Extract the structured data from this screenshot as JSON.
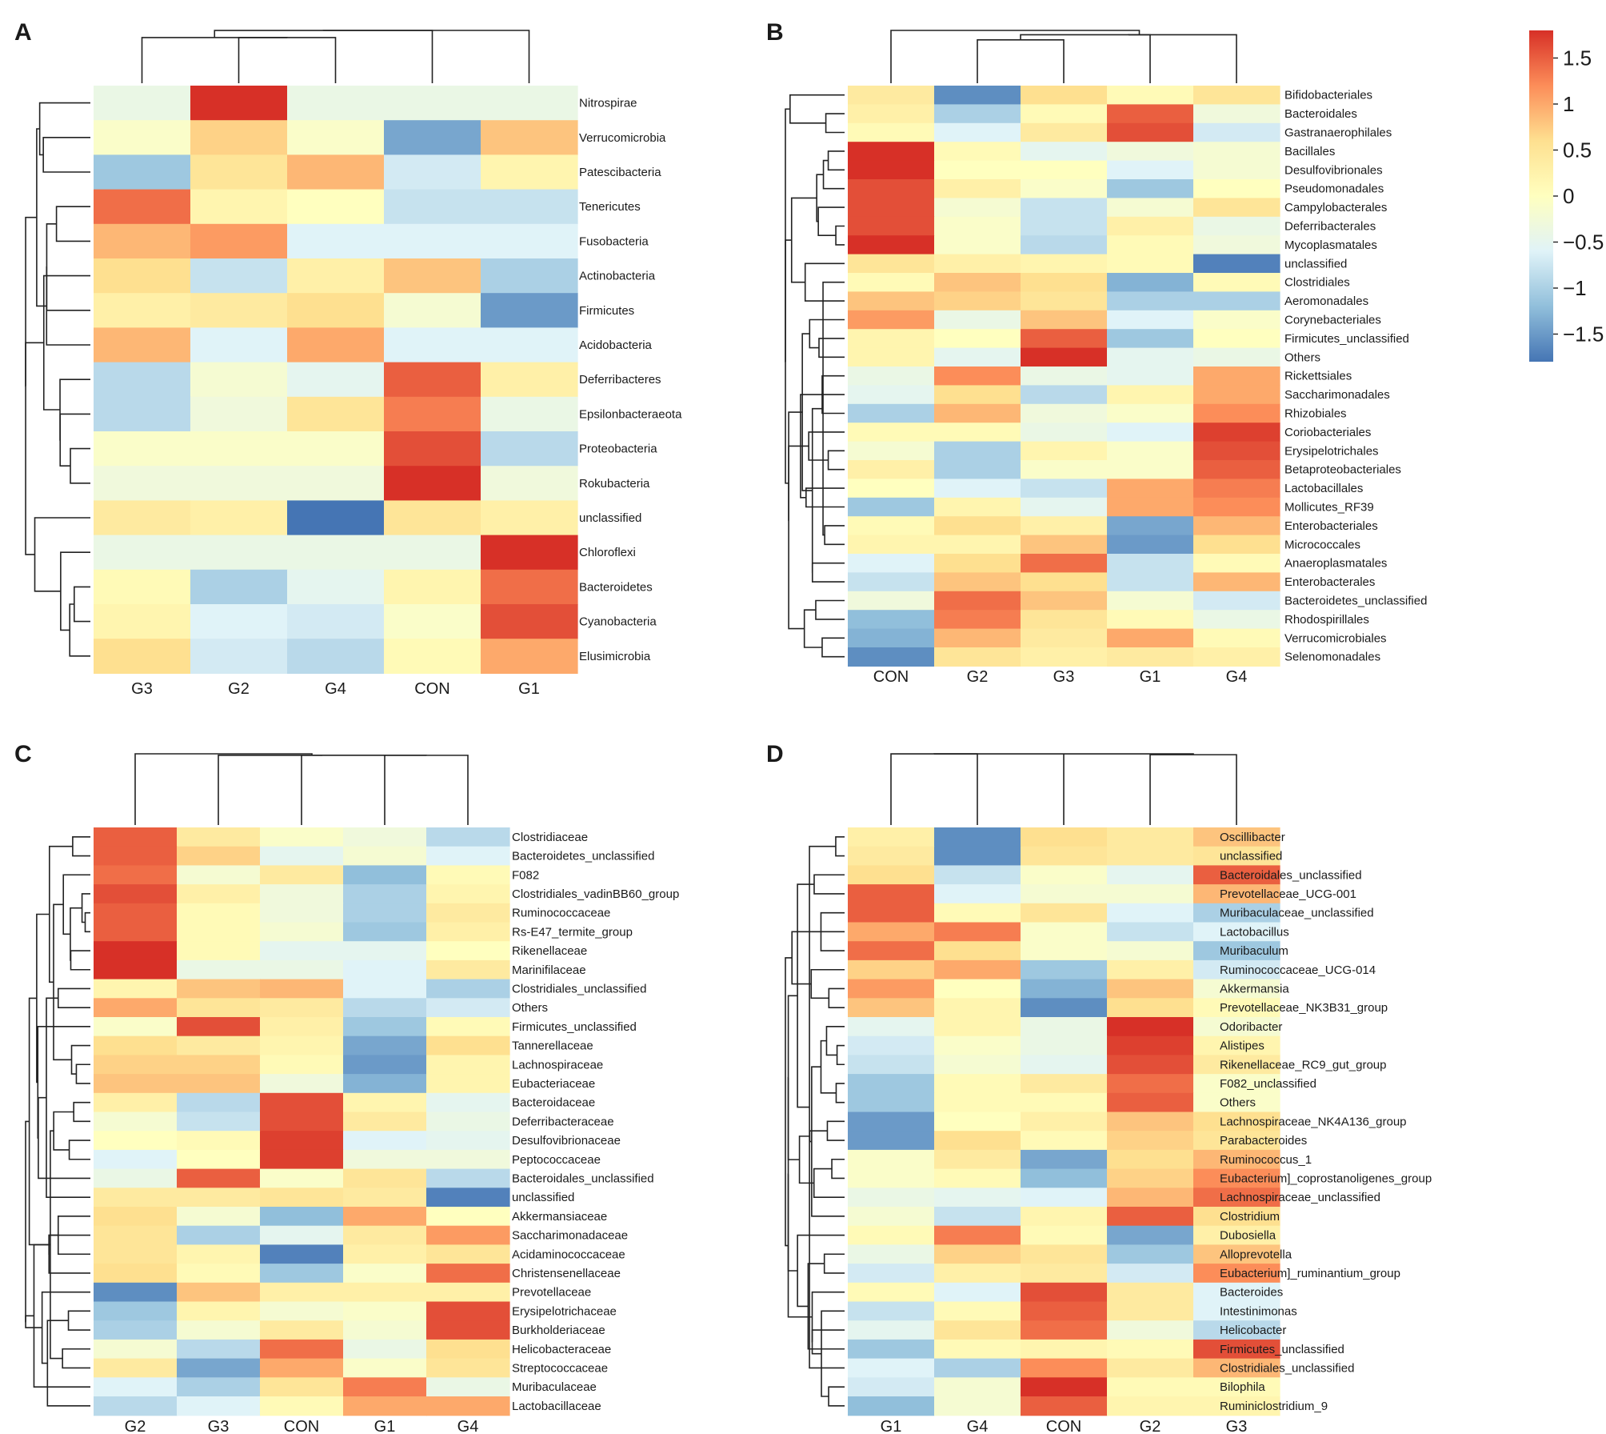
{
  "colors": {
    "scale": [
      "#4575b4",
      "#91bfdb",
      "#e0f3f8",
      "#ffffbf",
      "#fee090",
      "#fc8d59",
      "#d73027"
    ]
  },
  "chart_data": [
    {
      "type": "heatmap",
      "panel": "A",
      "columns": [
        "G3",
        "G2",
        "G4",
        "CON",
        "G1"
      ],
      "rows": [
        "Nitrospirae",
        "Verrucomicrobia",
        "Patescibacteria",
        "Tenericutes",
        "Fusobacteria",
        "Actinobacteria",
        "Firmicutes",
        "Acidobacteria",
        "Deferribacteres",
        "Epsilonbacteraeota",
        "Proteobacteria",
        "Rokubacteria",
        "unclassified",
        "Chloroflexi",
        "Bacteroidetes",
        "Cyanobacteria",
        "Elusimicrobia"
      ],
      "values": [
        [
          -0.4,
          1.8,
          -0.4,
          -0.4,
          -0.4
        ],
        [
          -0.1,
          0.7,
          -0.1,
          -1.4,
          0.8
        ],
        [
          -1.1,
          0.5,
          0.9,
          -0.7,
          0.2
        ],
        [
          1.4,
          0.2,
          0.0,
          -0.8,
          -0.8
        ],
        [
          0.9,
          1.1,
          -0.6,
          -0.6,
          -0.6
        ],
        [
          0.6,
          -0.8,
          0.3,
          0.8,
          -1.0
        ],
        [
          0.3,
          0.4,
          0.6,
          -0.2,
          -1.5
        ],
        [
          0.9,
          -0.6,
          1.0,
          -0.6,
          -0.6
        ],
        [
          -0.9,
          -0.2,
          -0.5,
          1.5,
          0.3
        ],
        [
          -0.9,
          -0.3,
          0.5,
          1.3,
          -0.4
        ],
        [
          -0.1,
          -0.1,
          -0.1,
          1.6,
          -0.9
        ],
        [
          -0.3,
          -0.3,
          -0.3,
          1.8,
          -0.3
        ],
        [
          0.4,
          0.3,
          -1.8,
          0.5,
          0.3
        ],
        [
          -0.4,
          -0.4,
          -0.4,
          -0.4,
          1.8
        ],
        [
          0.1,
          -1.0,
          -0.5,
          0.2,
          1.4
        ],
        [
          0.2,
          -0.6,
          -0.7,
          -0.1,
          1.6
        ],
        [
          0.6,
          -0.7,
          -0.9,
          0.1,
          1.0
        ]
      ],
      "scale_min": -1.8,
      "scale_max": 1.8
    },
    {
      "type": "heatmap",
      "panel": "B",
      "columns": [
        "CON",
        "G2",
        "G3",
        "G1",
        "G4"
      ],
      "rows": [
        "Bifidobacteriales",
        "Bacteroidales",
        "Gastranaerophilales",
        "Bacillales",
        "Desulfovibrionales",
        "Pseudomonadales",
        "Campylobacterales",
        "Deferribacterales",
        "Mycoplasmatales",
        "unclassified",
        "Clostridiales",
        "Aeromonadales",
        "Corynebacteriales",
        "Firmicutes_unclassified",
        "Others",
        "Rickettsiales",
        "Saccharimonadales",
        "Rhizobiales",
        "Coriobacteriales",
        "Erysipelotrichales",
        "Betaproteobacteriales",
        "Lactobacillales",
        "Mollicutes_RF39",
        "Enterobacteriales",
        "Micrococcales",
        "Anaeroplasmatales",
        "Enterobacterales",
        "Bacteroidetes_unclassified",
        "Rhodospirillales",
        "Verrucomicrobiales",
        "Selenomonadales"
      ],
      "values": [
        [
          0.4,
          -1.6,
          0.6,
          0.1,
          0.5
        ],
        [
          0.3,
          -1.0,
          0.1,
          1.5,
          -0.3
        ],
        [
          0.1,
          -0.6,
          0.4,
          1.6,
          -0.7
        ],
        [
          1.8,
          0.1,
          -0.5,
          -0.3,
          -0.2
        ],
        [
          1.8,
          0.0,
          0.0,
          -0.6,
          -0.2
        ],
        [
          1.6,
          0.3,
          -0.1,
          -1.1,
          0.0
        ],
        [
          1.6,
          -0.2,
          -0.8,
          -0.2,
          0.5
        ],
        [
          1.6,
          -0.1,
          -0.8,
          0.3,
          -0.4
        ],
        [
          1.8,
          -0.1,
          -0.9,
          0.1,
          -0.3
        ],
        [
          0.5,
          0.3,
          0.2,
          0.1,
          -1.7
        ],
        [
          0.1,
          0.8,
          0.6,
          -1.3,
          0.1
        ],
        [
          0.8,
          0.7,
          0.5,
          -1.0,
          -1.0
        ],
        [
          1.1,
          -0.4,
          0.8,
          -0.6,
          -0.1
        ],
        [
          0.2,
          0.0,
          1.5,
          -1.1,
          0.0
        ],
        [
          0.2,
          -0.5,
          1.8,
          -0.5,
          -0.4
        ],
        [
          -0.4,
          1.2,
          -0.4,
          -0.5,
          1.0
        ],
        [
          -0.5,
          0.6,
          -0.9,
          0.2,
          1.0
        ],
        [
          -1.0,
          0.9,
          -0.3,
          -0.1,
          1.2
        ],
        [
          0.1,
          0.1,
          -0.4,
          -0.6,
          1.7
        ],
        [
          -0.2,
          -1.0,
          0.2,
          -0.1,
          1.6
        ],
        [
          0.3,
          -1.0,
          -0.1,
          -0.1,
          1.5
        ],
        [
          0.0,
          -0.6,
          -0.8,
          1.0,
          1.3
        ],
        [
          -1.1,
          0.2,
          -0.5,
          1.0,
          1.2
        ],
        [
          0.1,
          0.6,
          0.3,
          -1.4,
          0.9
        ],
        [
          0.2,
          0.2,
          0.8,
          -1.5,
          0.6
        ],
        [
          -0.6,
          0.6,
          1.4,
          -0.8,
          0.1
        ],
        [
          -0.8,
          0.8,
          0.6,
          -0.8,
          0.9
        ],
        [
          -0.3,
          1.4,
          0.8,
          -0.2,
          -0.7
        ],
        [
          -1.2,
          1.3,
          0.5,
          0.1,
          -0.4
        ],
        [
          -1.3,
          0.9,
          0.4,
          1.0,
          0.1
        ],
        [
          -1.6,
          0.5,
          0.3,
          0.4,
          0.3
        ]
      ],
      "scale_min": -1.8,
      "scale_max": 1.8
    },
    {
      "type": "heatmap",
      "panel": "C",
      "columns": [
        "G2",
        "G3",
        "CON",
        "G1",
        "G4"
      ],
      "rows": [
        "Clostridiaceae",
        "Bacteroidetes_unclassified",
        "F082",
        "Clostridiales_vadinBB60_group",
        "Ruminococcaceae",
        "Rs-E47_termite_group",
        "Rikenellaceae",
        "Marinifilaceae",
        "Clostridiales_unclassified",
        "Others",
        "Firmicutes_unclassified",
        "Tannerellaceae",
        "Lachnospiraceae",
        "Eubacteriaceae",
        "Bacteroidaceae",
        "Deferribacteraceae",
        "Desulfovibrionaceae",
        "Peptococcaceae",
        "Bacteroidales_unclassified",
        "unclassified",
        "Akkermansiaceae",
        "Saccharimonadaceae",
        "Acidaminococcaceae",
        "Christensenellaceae",
        "Prevotellaceae",
        "Erysipelotrichaceae",
        "Burkholderiaceae",
        "Helicobacteraceae",
        "Streptococcaceae",
        "Muribaculaceae",
        "Lactobacillaceae"
      ],
      "values": [
        [
          1.5,
          0.4,
          -0.1,
          -0.3,
          -0.9
        ],
        [
          1.5,
          0.7,
          -0.5,
          -0.2,
          -0.6
        ],
        [
          1.4,
          -0.2,
          0.4,
          -1.2,
          0.1
        ],
        [
          1.6,
          0.3,
          -0.3,
          -1.0,
          0.2
        ],
        [
          1.5,
          0.1,
          -0.3,
          -1.0,
          0.4
        ],
        [
          1.5,
          0.1,
          -0.2,
          -1.1,
          0.3
        ],
        [
          1.8,
          0.1,
          -0.5,
          -0.5,
          0.0
        ],
        [
          1.8,
          -0.4,
          -0.4,
          -0.6,
          0.4
        ],
        [
          0.2,
          0.8,
          0.9,
          -0.6,
          -1.0
        ],
        [
          1.0,
          0.5,
          0.4,
          -0.9,
          -0.7
        ],
        [
          -0.1,
          1.6,
          0.3,
          -1.1,
          0.1
        ],
        [
          0.6,
          0.4,
          0.2,
          -1.4,
          0.6
        ],
        [
          0.7,
          0.7,
          0.1,
          -1.5,
          0.2
        ],
        [
          0.8,
          0.8,
          -0.3,
          -1.3,
          0.2
        ],
        [
          0.3,
          -0.9,
          1.6,
          0.2,
          -0.5
        ],
        [
          -0.2,
          -0.8,
          1.6,
          0.4,
          -0.4
        ],
        [
          0.0,
          0.1,
          1.7,
          -0.6,
          -0.5
        ],
        [
          -0.6,
          0.0,
          1.7,
          -0.3,
          -0.3
        ],
        [
          -0.4,
          1.5,
          -0.1,
          0.5,
          -0.9
        ],
        [
          0.4,
          0.4,
          0.5,
          0.4,
          -1.7
        ],
        [
          0.6,
          -0.2,
          -1.2,
          1.0,
          0.0
        ],
        [
          0.5,
          -1.0,
          -0.5,
          0.4,
          1.1
        ],
        [
          0.5,
          0.2,
          -1.7,
          0.3,
          0.5
        ],
        [
          0.6,
          0.1,
          -1.1,
          -0.1,
          1.4
        ],
        [
          -1.6,
          0.8,
          0.3,
          0.3,
          0.3
        ],
        [
          -1.1,
          0.2,
          -0.2,
          -0.1,
          1.6
        ],
        [
          -1.0,
          -0.2,
          0.4,
          -0.2,
          1.6
        ],
        [
          -0.2,
          -0.9,
          1.4,
          -0.4,
          0.6
        ],
        [
          0.4,
          -1.4,
          1.0,
          -0.1,
          0.5
        ],
        [
          -0.6,
          -1.0,
          0.5,
          1.3,
          -0.4
        ],
        [
          -0.9,
          -0.6,
          0.1,
          1.0,
          1.0
        ]
      ],
      "scale_min": -1.8,
      "scale_max": 1.8
    },
    {
      "type": "heatmap",
      "panel": "D",
      "columns": [
        "G1",
        "G4",
        "CON",
        "G2",
        "G3"
      ],
      "rows": [
        "Oscillibacter",
        "unclassified",
        "Bacteroidales_unclassified",
        "Prevotellaceae_UCG-001",
        "Muribaculaceae_unclassified",
        "Lactobacillus",
        "Muribaculum",
        "Ruminococcaceae_UCG-014",
        "Akkermansia",
        "Prevotellaceae_NK3B31_group",
        "Odoribacter",
        "Alistipes",
        "Rikenellaceae_RC9_gut_group",
        "F082_unclassified",
        "Others",
        "Lachnospiraceae_NK4A136_group",
        "Parabacteroides",
        "Ruminococcus_1",
        "Eubacterium]_coprostanoligenes_group",
        "Lachnospiraceae_unclassified",
        "Clostridium",
        "Dubosiella",
        "Alloprevotella",
        "Eubacterium]_ruminantium_group",
        "Bacteroides",
        "Intestinimonas",
        "Helicobacter",
        "Firmicutes_unclassified",
        "Clostridiales_unclassified",
        "Bilophila",
        "Ruminiclostridium_9"
      ],
      "values": [
        [
          0.3,
          -1.6,
          0.6,
          0.4,
          0.8
        ],
        [
          0.4,
          -1.6,
          0.5,
          0.4,
          0.5
        ],
        [
          0.6,
          -0.8,
          -0.1,
          -0.5,
          1.5
        ],
        [
          1.5,
          -0.6,
          -0.2,
          -0.2,
          0.9
        ],
        [
          1.5,
          0.1,
          0.5,
          -0.6,
          -1.0
        ],
        [
          1.0,
          1.3,
          -0.1,
          -0.8,
          -0.6
        ],
        [
          1.4,
          0.6,
          -0.1,
          -0.2,
          -1.1
        ],
        [
          0.7,
          1.0,
          -1.1,
          0.3,
          -0.7
        ],
        [
          1.1,
          0.0,
          -1.3,
          0.8,
          -0.2
        ],
        [
          0.8,
          0.2,
          -1.6,
          0.6,
          0.1
        ],
        [
          -0.5,
          0.2,
          -0.4,
          1.8,
          -0.2
        ],
        [
          -0.7,
          -0.1,
          -0.4,
          1.7,
          0.2
        ],
        [
          -0.8,
          -0.2,
          -0.5,
          1.6,
          0.4
        ],
        [
          -1.1,
          0.1,
          0.4,
          1.4,
          -0.1
        ],
        [
          -1.1,
          0.1,
          0.1,
          1.5,
          -0.1
        ],
        [
          -1.5,
          0.0,
          0.3,
          0.8,
          0.6
        ],
        [
          -1.5,
          0.6,
          0.1,
          0.7,
          0.5
        ],
        [
          -0.1,
          0.4,
          -1.4,
          0.6,
          0.9
        ],
        [
          -0.1,
          0.1,
          -1.2,
          0.7,
          1.2
        ],
        [
          -0.4,
          -0.5,
          -0.6,
          0.9,
          1.4
        ],
        [
          -0.2,
          -0.8,
          0.2,
          1.5,
          0.6
        ],
        [
          0.1,
          1.3,
          0.1,
          -1.4,
          0.3
        ],
        [
          -0.4,
          0.7,
          0.5,
          -1.1,
          0.8
        ],
        [
          -0.7,
          0.3,
          0.4,
          -0.7,
          1.2
        ],
        [
          0.1,
          -0.6,
          1.6,
          0.4,
          -0.6
        ],
        [
          -0.8,
          0.1,
          1.5,
          0.4,
          -0.6
        ],
        [
          -0.5,
          0.5,
          1.4,
          -0.3,
          -0.9
        ],
        [
          -1.1,
          0.1,
          0.2,
          0.1,
          1.6
        ],
        [
          -0.6,
          -1.0,
          1.2,
          0.4,
          0.9
        ],
        [
          -0.7,
          -0.2,
          1.8,
          0.1,
          0.1
        ],
        [
          -1.2,
          -0.2,
          1.5,
          0.2,
          0.2
        ]
      ],
      "scale_min": -1.8,
      "scale_max": 1.8
    }
  ],
  "legend": {
    "ticks": [
      "1.5",
      "1",
      "0.5",
      "0",
      "−0.5",
      "−1",
      "−1.5"
    ],
    "tick_values": [
      1.5,
      1,
      0.5,
      0,
      -0.5,
      -1,
      -1.5
    ],
    "min": -1.8,
    "max": 1.8
  }
}
